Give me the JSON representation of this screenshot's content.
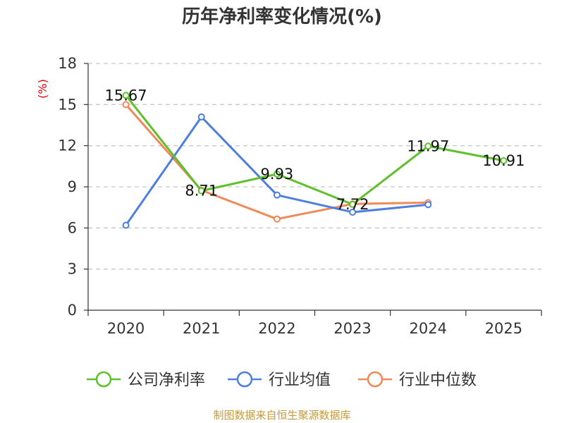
{
  "chart_data": {
    "type": "line",
    "title": "历年净利率变化情况(%)",
    "ylabel": "(%)",
    "xlabel": "",
    "categories": [
      "2020",
      "2021",
      "2022",
      "2023",
      "2024",
      "2025"
    ],
    "ylim": [
      0,
      18
    ],
    "yticks": [
      0,
      3,
      6,
      9,
      12,
      15,
      18
    ],
    "grid": true,
    "legend_position": "bottom",
    "series": [
      {
        "name": "公司净利率",
        "color": "#5ec02a",
        "values": [
          15.67,
          8.71,
          9.93,
          7.72,
          11.97,
          10.91
        ],
        "labels": [
          "15.67",
          "8.71",
          "9.93",
          "7.72",
          "11.97",
          "10.91"
        ]
      },
      {
        "name": "行业均值",
        "color": "#4e7fdc",
        "values": [
          6.2,
          14.1,
          8.4,
          7.15,
          7.7,
          null
        ]
      },
      {
        "name": "行业中位数",
        "color": "#f0895a",
        "values": [
          15.0,
          8.75,
          6.65,
          7.75,
          7.85,
          null
        ]
      }
    ]
  },
  "source": "制图数据来自恒生聚源数据库"
}
